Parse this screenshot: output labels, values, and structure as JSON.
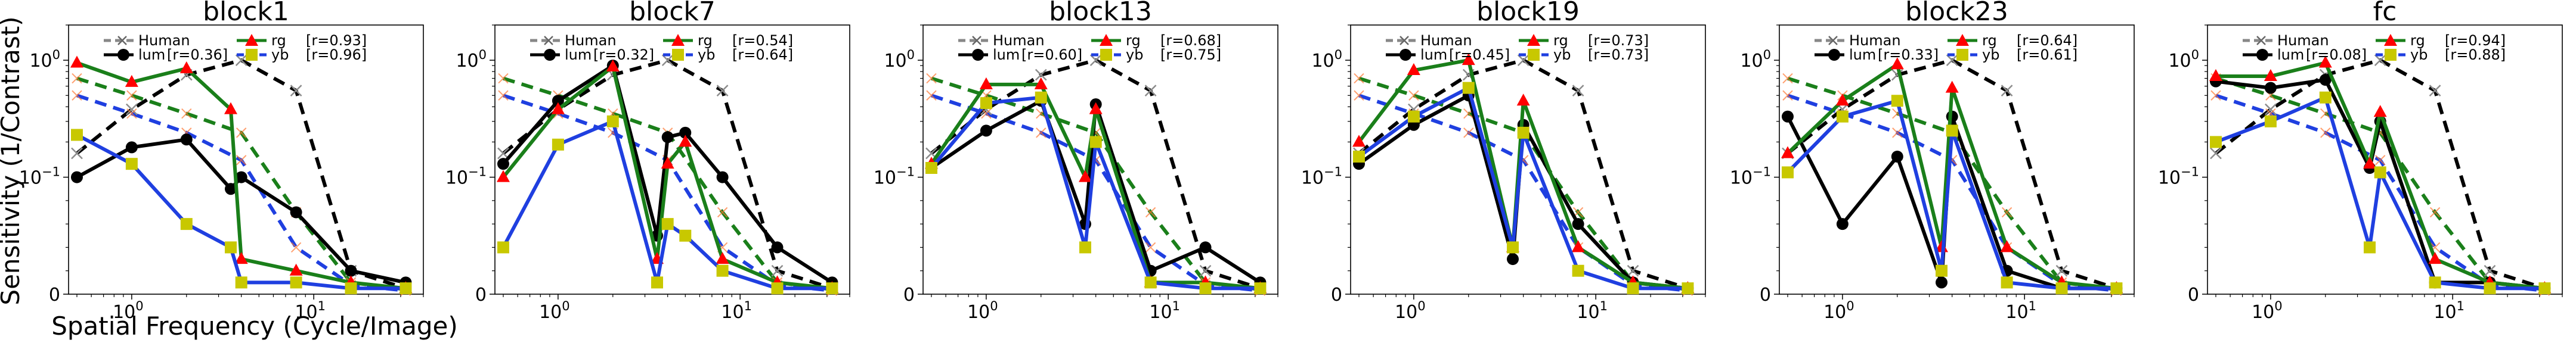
{
  "figure": {
    "ylabel": "Sensitivity (1/Contrast)",
    "xlabel": "Spatial Frequency (Cycle/Image)"
  },
  "legend": {
    "human": "Human",
    "lum_prefix": "lum",
    "rg_prefix": "rg",
    "yb_prefix": "yb"
  },
  "colors": {
    "human": "#8c8c8c",
    "lum": "#000000",
    "rg": "#1a7f1a",
    "yb": "#1f3fe0",
    "rg_marker": "#ff0000",
    "yb_marker": "#c8c800"
  },
  "chart_data": [
    {
      "type": "line",
      "title": "block1",
      "xscale": "log",
      "yscale": "symlog",
      "xlim": [
        0.45,
        40
      ],
      "ylim": [
        0,
        2
      ],
      "grid": false,
      "legend_position": "top",
      "x": [
        0.5,
        1,
        2,
        4,
        8,
        16,
        32
      ],
      "human_curve": {
        "name": "Human",
        "x": [
          0.5,
          1,
          2,
          4,
          8,
          16,
          32
        ],
        "values": [
          0.16,
          0.38,
          0.75,
          1.0,
          0.55,
          0.02,
          0.005
        ]
      },
      "human_chromatic": [
        {
          "x": [
            0.5,
            1,
            2,
            4,
            8,
            16,
            32
          ],
          "values": [
            0.7,
            0.5,
            0.35,
            0.24,
            0.07,
            0.01,
            0.004
          ]
        },
        {
          "x": [
            0.5,
            1,
            2,
            4,
            8,
            16,
            32
          ],
          "values": [
            0.5,
            0.35,
            0.24,
            0.14,
            0.04,
            0.008,
            0.003
          ]
        }
      ],
      "series": [
        {
          "name": "lum",
          "r": "[r=0.36]",
          "x": [
            0.5,
            1,
            2,
            3.5,
            4,
            8,
            16,
            32
          ],
          "values": [
            0.1,
            0.18,
            0.21,
            0.09,
            0.1,
            0.07,
            0.02,
            0.01
          ]
        },
        {
          "name": "rg",
          "r": "[r=0.93]",
          "x": [
            0.5,
            1,
            2,
            3.5,
            4,
            8,
            16,
            32
          ],
          "values": [
            0.95,
            0.65,
            0.85,
            0.38,
            0.03,
            0.02,
            0.01,
            0.005
          ]
        },
        {
          "name": "yb",
          "r": "[r=0.96]",
          "x": [
            0.5,
            1,
            2,
            3.5,
            4,
            8,
            16,
            32
          ],
          "values": [
            0.23,
            0.13,
            0.06,
            0.04,
            0.01,
            0.01,
            0.005,
            0.005
          ]
        }
      ]
    },
    {
      "type": "line",
      "title": "block7",
      "xscale": "log",
      "yscale": "symlog",
      "xlim": [
        0.45,
        40
      ],
      "ylim": [
        0,
        2
      ],
      "grid": false,
      "legend_position": "top",
      "x": [
        0.5,
        1,
        2,
        4,
        8,
        16,
        32
      ],
      "human_curve": {
        "name": "Human",
        "x": [
          0.5,
          1,
          2,
          4,
          8,
          16,
          32
        ],
        "values": [
          0.16,
          0.38,
          0.75,
          1.0,
          0.55,
          0.02,
          0.005
        ]
      },
      "human_chromatic": [
        {
          "x": [
            0.5,
            1,
            2,
            4,
            8,
            16,
            32
          ],
          "values": [
            0.7,
            0.5,
            0.35,
            0.24,
            0.07,
            0.01,
            0.004
          ]
        },
        {
          "x": [
            0.5,
            1,
            2,
            4,
            8,
            16,
            32
          ],
          "values": [
            0.5,
            0.35,
            0.24,
            0.14,
            0.04,
            0.008,
            0.003
          ]
        }
      ],
      "series": [
        {
          "name": "lum",
          "r": "[r=0.32]",
          "x": [
            0.5,
            1,
            2,
            3.5,
            4,
            5,
            8,
            16,
            32
          ],
          "values": [
            0.13,
            0.45,
            0.9,
            0.05,
            0.22,
            0.24,
            0.1,
            0.04,
            0.01
          ]
        },
        {
          "name": "rg",
          "r": "[r=0.54]",
          "x": [
            0.5,
            1,
            2,
            3.5,
            4,
            5,
            8,
            16,
            32
          ],
          "values": [
            0.1,
            0.38,
            0.88,
            0.03,
            0.13,
            0.2,
            0.03,
            0.01,
            0.005
          ]
        },
        {
          "name": "yb",
          "r": "[r=0.64]",
          "x": [
            0.5,
            1,
            2,
            3.5,
            4,
            5,
            8,
            16,
            32
          ],
          "values": [
            0.04,
            0.19,
            0.3,
            0.01,
            0.06,
            0.05,
            0.02,
            0.005,
            0.005
          ]
        }
      ]
    },
    {
      "type": "line",
      "title": "block13",
      "xscale": "log",
      "yscale": "symlog",
      "xlim": [
        0.45,
        40
      ],
      "ylim": [
        0,
        2
      ],
      "grid": false,
      "legend_position": "top",
      "x": [
        0.5,
        1,
        2,
        4,
        8,
        16,
        32
      ],
      "human_curve": {
        "name": "Human",
        "x": [
          0.5,
          1,
          2,
          4,
          8,
          16,
          32
        ],
        "values": [
          0.16,
          0.38,
          0.75,
          1.0,
          0.55,
          0.02,
          0.005
        ]
      },
      "human_chromatic": [
        {
          "x": [
            0.5,
            1,
            2,
            4,
            8,
            16,
            32
          ],
          "values": [
            0.7,
            0.5,
            0.35,
            0.24,
            0.07,
            0.01,
            0.004
          ]
        },
        {
          "x": [
            0.5,
            1,
            2,
            4,
            8,
            16,
            32
          ],
          "values": [
            0.5,
            0.35,
            0.24,
            0.14,
            0.04,
            0.008,
            0.003
          ]
        }
      ],
      "series": [
        {
          "name": "lum",
          "r": "[r=0.60]",
          "x": [
            0.5,
            1,
            2,
            3.5,
            4,
            8,
            16,
            32
          ],
          "values": [
            0.12,
            0.25,
            0.45,
            0.06,
            0.42,
            0.02,
            0.04,
            0.01
          ]
        },
        {
          "name": "rg",
          "r": "[r=0.68]",
          "x": [
            0.5,
            1,
            2,
            3.5,
            4,
            8,
            16,
            32
          ],
          "values": [
            0.13,
            0.62,
            0.62,
            0.1,
            0.38,
            0.01,
            0.01,
            0.005
          ]
        },
        {
          "name": "yb",
          "r": "[r=0.75]",
          "x": [
            0.5,
            1,
            2,
            3.5,
            4,
            8,
            16,
            32
          ],
          "values": [
            0.12,
            0.43,
            0.48,
            0.04,
            0.2,
            0.01,
            0.005,
            0.005
          ]
        }
      ]
    },
    {
      "type": "line",
      "title": "block19",
      "xscale": "log",
      "yscale": "symlog",
      "xlim": [
        0.45,
        40
      ],
      "ylim": [
        0,
        2
      ],
      "grid": false,
      "legend_position": "top",
      "x": [
        0.5,
        1,
        2,
        4,
        8,
        16,
        32
      ],
      "human_curve": {
        "name": "Human",
        "x": [
          0.5,
          1,
          2,
          4,
          8,
          16,
          32
        ],
        "values": [
          0.16,
          0.38,
          0.75,
          1.0,
          0.55,
          0.02,
          0.005
        ]
      },
      "human_chromatic": [
        {
          "x": [
            0.5,
            1,
            2,
            4,
            8,
            16,
            32
          ],
          "values": [
            0.7,
            0.5,
            0.35,
            0.24,
            0.07,
            0.01,
            0.004
          ]
        },
        {
          "x": [
            0.5,
            1,
            2,
            4,
            8,
            16,
            32
          ],
          "values": [
            0.5,
            0.35,
            0.24,
            0.14,
            0.04,
            0.008,
            0.003
          ]
        }
      ],
      "series": [
        {
          "name": "lum",
          "r": "[r=0.45]",
          "x": [
            0.5,
            1,
            2,
            3.5,
            4,
            8,
            16,
            32
          ],
          "values": [
            0.13,
            0.28,
            0.5,
            0.03,
            0.28,
            0.06,
            0.01,
            0.005
          ]
        },
        {
          "name": "rg",
          "r": "[r=0.73]",
          "x": [
            0.5,
            1,
            2,
            3.5,
            4,
            8,
            16,
            32
          ],
          "values": [
            0.2,
            0.82,
            1.0,
            0.04,
            0.45,
            0.04,
            0.01,
            0.005
          ]
        },
        {
          "name": "yb",
          "r": "[r=0.73]",
          "x": [
            0.5,
            1,
            2,
            3.5,
            4,
            8,
            16,
            32
          ],
          "values": [
            0.15,
            0.33,
            0.58,
            0.04,
            0.24,
            0.02,
            0.005,
            0.005
          ]
        }
      ]
    },
    {
      "type": "line",
      "title": "block23",
      "xscale": "log",
      "yscale": "symlog",
      "xlim": [
        0.45,
        40
      ],
      "ylim": [
        0,
        2
      ],
      "grid": false,
      "legend_position": "top",
      "x": [
        0.5,
        1,
        2,
        4,
        8,
        16,
        32
      ],
      "human_curve": {
        "name": "Human",
        "x": [
          0.5,
          1,
          2,
          4,
          8,
          16,
          32
        ],
        "values": [
          0.16,
          0.38,
          0.75,
          1.0,
          0.55,
          0.02,
          0.005
        ]
      },
      "human_chromatic": [
        {
          "x": [
            0.5,
            1,
            2,
            4,
            8,
            16,
            32
          ],
          "values": [
            0.7,
            0.5,
            0.35,
            0.24,
            0.07,
            0.01,
            0.004
          ]
        },
        {
          "x": [
            0.5,
            1,
            2,
            4,
            8,
            16,
            32
          ],
          "values": [
            0.5,
            0.35,
            0.24,
            0.14,
            0.04,
            0.008,
            0.003
          ]
        }
      ],
      "series": [
        {
          "name": "lum",
          "r": "[r=0.33]",
          "x": [
            0.5,
            1,
            2,
            3.5,
            4,
            8,
            16,
            32
          ],
          "values": [
            0.33,
            0.06,
            0.15,
            0.01,
            0.33,
            0.02,
            0.005,
            0.005
          ]
        },
        {
          "name": "rg",
          "r": "[r=0.64]",
          "x": [
            0.5,
            1,
            2,
            3.5,
            4,
            8,
            16,
            32
          ],
          "values": [
            0.16,
            0.45,
            0.92,
            0.04,
            0.58,
            0.04,
            0.01,
            0.005
          ]
        },
        {
          "name": "yb",
          "r": "[r=0.61]",
          "x": [
            0.5,
            1,
            2,
            3.5,
            4,
            8,
            16,
            32
          ],
          "values": [
            0.11,
            0.33,
            0.45,
            0.02,
            0.25,
            0.01,
            0.005,
            0.005
          ]
        }
      ]
    },
    {
      "type": "line",
      "title": "fc",
      "xscale": "log",
      "yscale": "symlog",
      "xlim": [
        0.45,
        40
      ],
      "ylim": [
        0,
        2
      ],
      "grid": false,
      "legend_position": "top",
      "x": [
        0.5,
        1,
        2,
        4,
        8,
        16,
        32
      ],
      "human_curve": {
        "name": "Human",
        "x": [
          0.5,
          1,
          2,
          4,
          8,
          16,
          32
        ],
        "values": [
          0.16,
          0.38,
          0.75,
          1.0,
          0.55,
          0.02,
          0.005
        ]
      },
      "human_chromatic": [
        {
          "x": [
            0.5,
            1,
            2,
            4,
            8,
            16,
            32
          ],
          "values": [
            0.7,
            0.5,
            0.35,
            0.24,
            0.07,
            0.01,
            0.004
          ]
        },
        {
          "x": [
            0.5,
            1,
            2,
            4,
            8,
            16,
            32
          ],
          "values": [
            0.5,
            0.35,
            0.24,
            0.14,
            0.04,
            0.008,
            0.003
          ]
        }
      ],
      "series": [
        {
          "name": "lum",
          "r": "[r=0.08]",
          "x": [
            0.5,
            1,
            2,
            3.5,
            4,
            8,
            16,
            32
          ],
          "values": [
            0.66,
            0.58,
            0.68,
            0.12,
            0.3,
            0.01,
            0.01,
            0.005
          ]
        },
        {
          "name": "rg",
          "r": "[r=0.94]",
          "x": [
            0.5,
            1,
            2,
            3.5,
            4,
            8,
            16,
            32
          ],
          "values": [
            0.73,
            0.73,
            0.95,
            0.13,
            0.36,
            0.03,
            0.01,
            0.005
          ]
        },
        {
          "name": "yb",
          "r": "[r=0.88]",
          "x": [
            0.5,
            1,
            2,
            3.5,
            4,
            8,
            16,
            32
          ],
          "values": [
            0.2,
            0.3,
            0.48,
            0.04,
            0.11,
            0.01,
            0.005,
            0.005
          ]
        }
      ]
    }
  ]
}
